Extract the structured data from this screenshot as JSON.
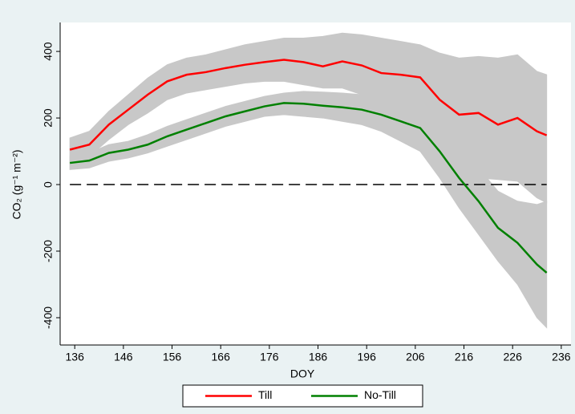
{
  "chart_data": {
    "type": "line",
    "x_label": "DOY",
    "y_label": "CO₂ (g⁻¹ m⁻²)",
    "x": [
      135,
      139,
      143,
      147,
      151,
      155,
      159,
      163,
      167,
      171,
      175,
      179,
      183,
      187,
      191,
      195,
      199,
      203,
      207,
      211,
      215,
      219,
      223,
      227,
      231,
      233
    ],
    "series": [
      {
        "name": "Till",
        "color": "#ff0000",
        "values": [
          105,
          120,
          180,
          225,
          270,
          310,
          330,
          338,
          350,
          360,
          368,
          375,
          368,
          355,
          370,
          358,
          335,
          330,
          322,
          255,
          210,
          215,
          180,
          200,
          160,
          148
        ],
        "upper": [
          140,
          160,
          220,
          270,
          320,
          360,
          380,
          390,
          405,
          420,
          430,
          440,
          440,
          445,
          455,
          450,
          440,
          430,
          420,
          395,
          380,
          385,
          380,
          390,
          340,
          330
        ],
        "lower": [
          70,
          85,
          135,
          180,
          215,
          255,
          275,
          285,
          295,
          305,
          310,
          310,
          300,
          290,
          290,
          270,
          250,
          240,
          225,
          120,
          40,
          20,
          15,
          10,
          -40,
          -55
        ]
      },
      {
        "name": "No-Till",
        "color": "#008000",
        "values": [
          65,
          72,
          95,
          105,
          120,
          145,
          165,
          185,
          205,
          220,
          235,
          245,
          243,
          237,
          232,
          225,
          210,
          190,
          170,
          100,
          20,
          -50,
          -130,
          -175,
          -240,
          -265
        ],
        "upper": [
          85,
          95,
          120,
          130,
          150,
          175,
          195,
          215,
          235,
          250,
          265,
          275,
          280,
          278,
          275,
          270,
          260,
          245,
          230,
          180,
          110,
          50,
          -20,
          -50,
          -60,
          -50
        ],
        "lower": [
          45,
          50,
          70,
          80,
          95,
          115,
          135,
          155,
          175,
          190,
          205,
          210,
          205,
          200,
          190,
          180,
          160,
          130,
          100,
          20,
          -70,
          -150,
          -230,
          -300,
          -400,
          -430
        ]
      }
    ],
    "band_color": "#c8c8c8",
    "reference_line": 0,
    "xlim": [
      133,
      238
    ],
    "xticks": [
      136,
      146,
      156,
      166,
      176,
      186,
      196,
      206,
      216,
      226,
      236
    ],
    "ylim": [
      -482,
      487
    ],
    "yticks": [
      -400,
      -200,
      0,
      200,
      400
    ],
    "legend": "bottom"
  }
}
